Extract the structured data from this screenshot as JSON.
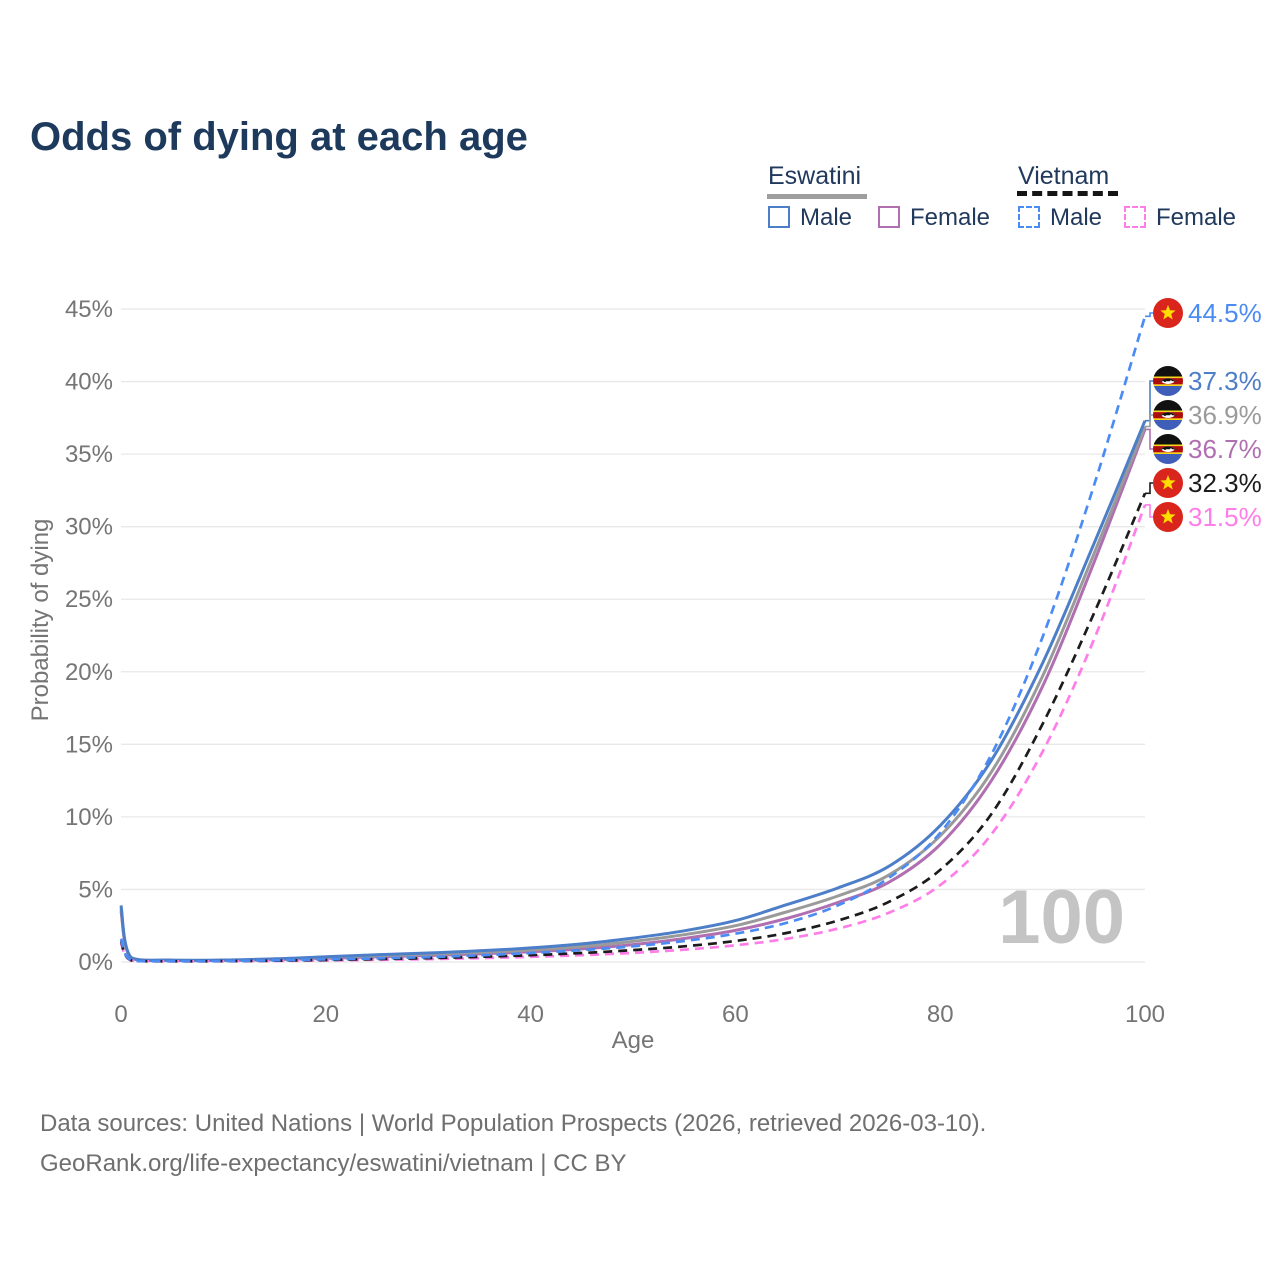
{
  "title": "Odds of dying at each age",
  "watermark": "100",
  "legend": {
    "groups": [
      {
        "name": "Eswatini",
        "line_style": "solid",
        "underline_color": "#9e9e9e",
        "items": [
          {
            "label": "Male",
            "color": "#4d7ec8"
          },
          {
            "label": "Female",
            "color": "#b06fb0"
          }
        ]
      },
      {
        "name": "Vietnam",
        "line_style": "dashed",
        "underline_color": "#151515",
        "items": [
          {
            "label": "Male",
            "color": "#4b8bf4"
          },
          {
            "label": "Female",
            "color": "#ff7de9"
          }
        ]
      }
    ]
  },
  "chart_data": {
    "type": "line",
    "title": "Odds of dying at each age",
    "xlabel": "Age",
    "ylabel": "Probability of dying",
    "xlim": [
      0,
      100
    ],
    "ylim": [
      0,
      45
    ],
    "grid": "horizontal",
    "xticks": [
      0,
      20,
      40,
      60,
      80,
      100
    ],
    "xtick_labels": [
      "0",
      "20",
      "40",
      "60",
      "80",
      "100"
    ],
    "yticks": [
      0,
      5,
      10,
      15,
      20,
      25,
      30,
      35,
      40,
      45
    ],
    "ytick_labels": [
      "0%",
      "5%",
      "10%",
      "15%",
      "20%",
      "25%",
      "30%",
      "35%",
      "40%",
      "45%"
    ],
    "series": [
      {
        "name": "Eswatini Female",
        "country": "Eswatini",
        "sex": "female",
        "color": "#b06fb0",
        "dash": "solid",
        "flag": "eswatini",
        "end_value": 36.7,
        "end_label": "36.7%",
        "points": [
          [
            0,
            3.5
          ],
          [
            1,
            0.26
          ],
          [
            5,
            0.11
          ],
          [
            10,
            0.11
          ],
          [
            15,
            0.16
          ],
          [
            20,
            0.25
          ],
          [
            25,
            0.35
          ],
          [
            30,
            0.45
          ],
          [
            35,
            0.56
          ],
          [
            40,
            0.7
          ],
          [
            45,
            0.9
          ],
          [
            50,
            1.2
          ],
          [
            55,
            1.62
          ],
          [
            60,
            2.18
          ],
          [
            65,
            3.0
          ],
          [
            70,
            4.1
          ],
          [
            75,
            5.5
          ],
          [
            80,
            8.1
          ],
          [
            85,
            12.5
          ],
          [
            90,
            19.0
          ],
          [
            95,
            27.5
          ],
          [
            100,
            36.7
          ]
        ]
      },
      {
        "name": "Eswatini Both sexes",
        "country": "Eswatini",
        "sex": "both",
        "color": "#9a9a9a",
        "dash": "solid",
        "flag": "eswatini",
        "end_value": 36.9,
        "end_label": "36.9%",
        "points": [
          [
            0,
            3.7
          ],
          [
            1,
            0.28
          ],
          [
            5,
            0.12
          ],
          [
            10,
            0.12
          ],
          [
            15,
            0.19
          ],
          [
            20,
            0.3
          ],
          [
            25,
            0.42
          ],
          [
            30,
            0.53
          ],
          [
            35,
            0.66
          ],
          [
            40,
            0.82
          ],
          [
            45,
            1.06
          ],
          [
            50,
            1.42
          ],
          [
            55,
            1.88
          ],
          [
            60,
            2.5
          ],
          [
            65,
            3.45
          ],
          [
            70,
            4.55
          ],
          [
            75,
            6.0
          ],
          [
            80,
            8.7
          ],
          [
            85,
            13.1
          ],
          [
            90,
            19.7
          ],
          [
            95,
            28.1
          ],
          [
            100,
            36.9
          ]
        ]
      },
      {
        "name": "Eswatini Male",
        "country": "Eswatini",
        "sex": "male",
        "color": "#4d7ec8",
        "dash": "solid",
        "flag": "eswatini",
        "end_value": 37.3,
        "end_label": "37.3%",
        "points": [
          [
            0,
            3.9
          ],
          [
            1,
            0.3
          ],
          [
            5,
            0.13
          ],
          [
            10,
            0.14
          ],
          [
            15,
            0.22
          ],
          [
            20,
            0.36
          ],
          [
            25,
            0.5
          ],
          [
            30,
            0.62
          ],
          [
            35,
            0.77
          ],
          [
            40,
            0.97
          ],
          [
            45,
            1.25
          ],
          [
            50,
            1.65
          ],
          [
            55,
            2.15
          ],
          [
            60,
            2.85
          ],
          [
            65,
            3.95
          ],
          [
            70,
            5.1
          ],
          [
            75,
            6.6
          ],
          [
            80,
            9.4
          ],
          [
            85,
            13.9
          ],
          [
            90,
            20.6
          ],
          [
            95,
            28.8
          ],
          [
            100,
            37.3
          ]
        ]
      },
      {
        "name": "Vietnam Female",
        "country": "Vietnam",
        "sex": "female",
        "color": "#ff7de9",
        "dash": "dashed",
        "flag": "vietnam",
        "end_value": 31.5,
        "end_label": "31.5%",
        "points": [
          [
            0,
            1.3
          ],
          [
            1,
            0.1
          ],
          [
            5,
            0.05
          ],
          [
            10,
            0.05
          ],
          [
            15,
            0.07
          ],
          [
            20,
            0.11
          ],
          [
            25,
            0.15
          ],
          [
            30,
            0.2
          ],
          [
            35,
            0.27
          ],
          [
            40,
            0.36
          ],
          [
            45,
            0.47
          ],
          [
            50,
            0.63
          ],
          [
            55,
            0.85
          ],
          [
            60,
            1.15
          ],
          [
            65,
            1.6
          ],
          [
            70,
            2.3
          ],
          [
            75,
            3.4
          ],
          [
            80,
            5.3
          ],
          [
            85,
            8.8
          ],
          [
            90,
            14.5
          ],
          [
            95,
            22.2
          ],
          [
            100,
            31.5
          ]
        ]
      },
      {
        "name": "Vietnam Both sexes",
        "country": "Vietnam",
        "sex": "both",
        "color": "#1c1c1c",
        "dash": "dashed",
        "flag": "vietnam",
        "end_value": 32.3,
        "end_label": "32.3%",
        "points": [
          [
            0,
            1.45
          ],
          [
            1,
            0.11
          ],
          [
            5,
            0.05
          ],
          [
            10,
            0.06
          ],
          [
            15,
            0.09
          ],
          [
            20,
            0.14
          ],
          [
            25,
            0.2
          ],
          [
            30,
            0.27
          ],
          [
            35,
            0.36
          ],
          [
            40,
            0.47
          ],
          [
            45,
            0.62
          ],
          [
            50,
            0.82
          ],
          [
            55,
            1.08
          ],
          [
            60,
            1.45
          ],
          [
            65,
            2.0
          ],
          [
            70,
            2.85
          ],
          [
            75,
            4.15
          ],
          [
            80,
            6.35
          ],
          [
            85,
            10.2
          ],
          [
            90,
            16.4
          ],
          [
            95,
            24.0
          ],
          [
            100,
            32.3
          ]
        ]
      },
      {
        "name": "Vietnam Male",
        "country": "Vietnam",
        "sex": "male",
        "color": "#4b8bf4",
        "dash": "dashed",
        "flag": "vietnam",
        "end_value": 44.5,
        "end_label": "44.5%",
        "points": [
          [
            0,
            1.6
          ],
          [
            1,
            0.12
          ],
          [
            5,
            0.06
          ],
          [
            10,
            0.07
          ],
          [
            15,
            0.11
          ],
          [
            20,
            0.18
          ],
          [
            25,
            0.25
          ],
          [
            30,
            0.34
          ],
          [
            35,
            0.46
          ],
          [
            40,
            0.62
          ],
          [
            45,
            0.82
          ],
          [
            50,
            1.08
          ],
          [
            55,
            1.45
          ],
          [
            60,
            1.95
          ],
          [
            65,
            2.7
          ],
          [
            70,
            3.9
          ],
          [
            75,
            5.8
          ],
          [
            80,
            8.9
          ],
          [
            85,
            14.3
          ],
          [
            90,
            22.4
          ],
          [
            95,
            32.8
          ],
          [
            100,
            44.5
          ]
        ]
      }
    ]
  },
  "footer": {
    "line1": "Data sources: United Nations | World Population Prospects (2026, retrieved 2026-03-10).",
    "line2": "GeoRank.org/life-expectancy/eswatini/vietnam | CC BY"
  }
}
